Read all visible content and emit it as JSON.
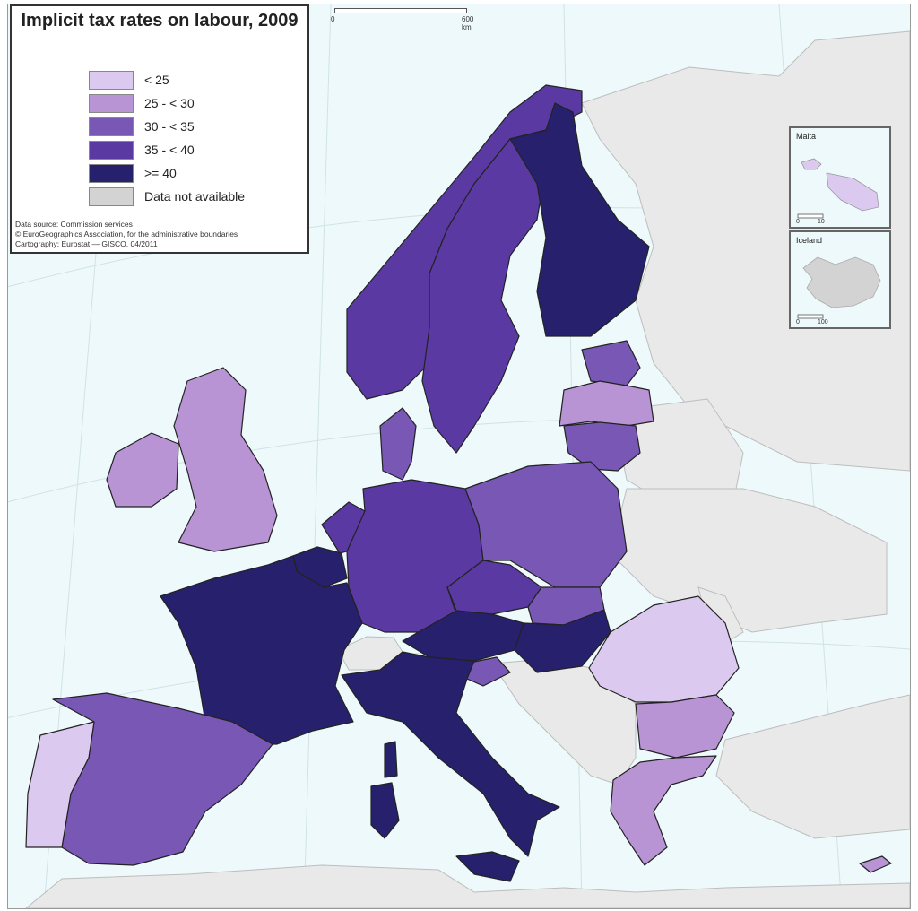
{
  "map": {
    "title": "Implicit tax rates on labour, 2009",
    "scale_bar": {
      "start_label": "0",
      "end_label": "600 km"
    },
    "legend": [
      {
        "label": "< 25",
        "color": "#dcc9ef"
      },
      {
        "label": "25 - < 30",
        "color": "#b894d4"
      },
      {
        "label": "30 - < 35",
        "color": "#7957b4"
      },
      {
        "label": "35 - < 40",
        "color": "#5a3aa2"
      },
      {
        "label": ">= 40",
        "color": "#27206d"
      },
      {
        "label": "Data not available",
        "color": "#d3d3d3"
      }
    ],
    "sources": {
      "line1": "Data source: Commission services",
      "line2": "© EuroGeographics Association, for the administrative boundaries",
      "line3": "Cartography: Eurostat — GISCO, 04/2011"
    },
    "insets": {
      "malta": {
        "title": "Malta",
        "scale_start": "0",
        "scale_end": "10"
      },
      "iceland": {
        "title": "Iceland",
        "scale_start": "0",
        "scale_end": "100"
      }
    },
    "colors": {
      "sea": "#eef9fb",
      "non_eu": "#e9e9e9",
      "border": "#222222"
    },
    "regions": [
      {
        "name": "Finland",
        "class": ">= 40"
      },
      {
        "name": "Sweden",
        "class": "35 - < 40"
      },
      {
        "name": "Norway",
        "class": "35 - < 40"
      },
      {
        "name": "Estonia",
        "class": "30 - < 35"
      },
      {
        "name": "Latvia",
        "class": "25 - < 30"
      },
      {
        "name": "Lithuania",
        "class": "30 - < 35"
      },
      {
        "name": "Denmark",
        "class": "30 - < 35"
      },
      {
        "name": "United Kingdom",
        "class": "25 - < 30"
      },
      {
        "name": "Ireland",
        "class": "25 - < 30"
      },
      {
        "name": "Netherlands",
        "class": "35 - < 40"
      },
      {
        "name": "Belgium",
        "class": ">= 40"
      },
      {
        "name": "Germany",
        "class": "35 - < 40"
      },
      {
        "name": "Poland",
        "class": "30 - < 35"
      },
      {
        "name": "Czech Republic",
        "class": "35 - < 40"
      },
      {
        "name": "Slovakia",
        "class": "30 - < 35"
      },
      {
        "name": "Austria",
        "class": ">= 40"
      },
      {
        "name": "Hungary",
        "class": ">= 40"
      },
      {
        "name": "Slovenia",
        "class": "30 - < 35"
      },
      {
        "name": "France",
        "class": ">= 40"
      },
      {
        "name": "Italy",
        "class": ">= 40"
      },
      {
        "name": "Spain",
        "class": "30 - < 35"
      },
      {
        "name": "Portugal",
        "class": "< 25"
      },
      {
        "name": "Romania",
        "class": "< 25"
      },
      {
        "name": "Bulgaria",
        "class": "25 - < 30"
      },
      {
        "name": "Greece",
        "class": "25 - < 30"
      },
      {
        "name": "Cyprus",
        "class": "25 - < 30"
      },
      {
        "name": "Malta",
        "class": "< 25"
      },
      {
        "name": "Switzerland",
        "class": "Data not available"
      },
      {
        "name": "Iceland",
        "class": "Data not available"
      }
    ]
  }
}
